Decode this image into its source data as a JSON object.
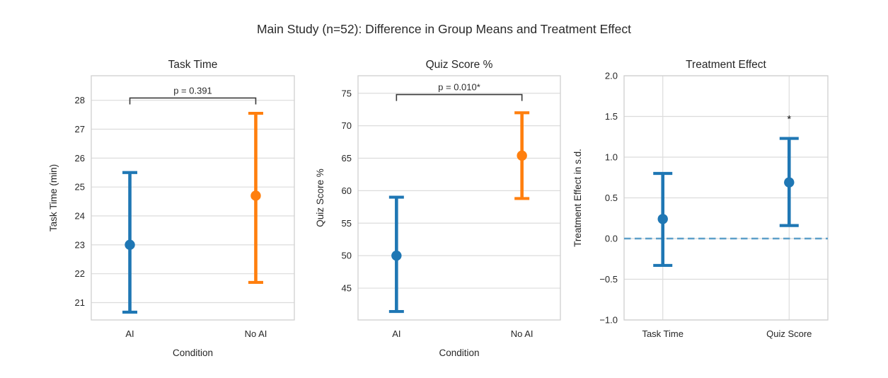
{
  "figure": {
    "title": "Main Study (n=52): Difference in Group Means and Treatment Effect"
  },
  "colors": {
    "blue": "#1f77b4",
    "orange": "#ff7f0e",
    "zero_line": "#5d9fc9",
    "grid": "#dcdcdc",
    "axes_border": "#d0d0d0",
    "text": "#262626",
    "bracket": "#3a3a3a"
  },
  "chart_data": [
    {
      "type": "errorbar",
      "title": "Task Time",
      "ylabel": "Task Time (min)",
      "xlabel": "Condition",
      "ylim": [
        20.4,
        28.85
      ],
      "yticks": [
        21,
        22,
        23,
        24,
        25,
        26,
        27,
        28
      ],
      "ytick_labels": [
        "21",
        "22",
        "23",
        "24",
        "25",
        "26",
        "27",
        "28"
      ],
      "categories": [
        "AI",
        "No AI"
      ],
      "series": [
        {
          "name": "AI",
          "x": 0,
          "mean": 23.0,
          "ci": [
            20.67,
            25.5
          ],
          "color": "#1f77b4"
        },
        {
          "name": "No AI",
          "x": 1,
          "mean": 24.7,
          "ci": [
            21.7,
            27.55
          ],
          "color": "#ff7f0e"
        }
      ],
      "significance_bracket": {
        "label": "p = 0.391",
        "y": 28.08
      },
      "grid_axis": "y",
      "legend": null
    },
    {
      "type": "errorbar",
      "title": "Quiz Score %",
      "ylabel": "Quiz Score %",
      "xlabel": "Condition",
      "ylim": [
        40.1,
        77.7
      ],
      "yticks": [
        45,
        50,
        55,
        60,
        65,
        70,
        75
      ],
      "ytick_labels": [
        "45",
        "50",
        "55",
        "60",
        "65",
        "70",
        "75"
      ],
      "categories": [
        "AI",
        "No AI"
      ],
      "series": [
        {
          "name": "AI",
          "x": 0,
          "mean": 50.0,
          "ci": [
            41.4,
            59.0
          ],
          "color": "#1f77b4"
        },
        {
          "name": "No AI",
          "x": 1,
          "mean": 65.4,
          "ci": [
            58.8,
            72.0
          ],
          "color": "#ff7f0e"
        }
      ],
      "significance_bracket": {
        "label": "p = 0.010*",
        "y": 74.8
      },
      "grid_axis": "y",
      "legend": null
    },
    {
      "type": "errorbar",
      "title": "Treatment Effect",
      "ylabel": "Treatment Effect in s.d.",
      "xlabel": "",
      "ylim": [
        -1.0,
        2.0
      ],
      "yticks": [
        -1.0,
        -0.5,
        0.0,
        0.5,
        1.0,
        1.5,
        2.0
      ],
      "ytick_labels": [
        "−1.0",
        "−0.5",
        "0.0",
        "0.5",
        "1.0",
        "1.5",
        "2.0"
      ],
      "categories": [
        "Task Time",
        "Quiz Score"
      ],
      "series": [
        {
          "name": "Task Time",
          "x": 0,
          "mean": 0.24,
          "ci": [
            -0.33,
            0.8
          ],
          "color": "#1f77b4"
        },
        {
          "name": "Quiz Score",
          "x": 1,
          "mean": 0.69,
          "ci": [
            0.16,
            1.23
          ],
          "color": "#1f77b4"
        }
      ],
      "zero_line": {
        "y": 0.0,
        "color": "#5d9fc9",
        "style": "dashed"
      },
      "annotations": [
        {
          "text": "*",
          "x": 1,
          "y": 1.47
        }
      ],
      "grid_axis": "both",
      "legend": null
    }
  ]
}
